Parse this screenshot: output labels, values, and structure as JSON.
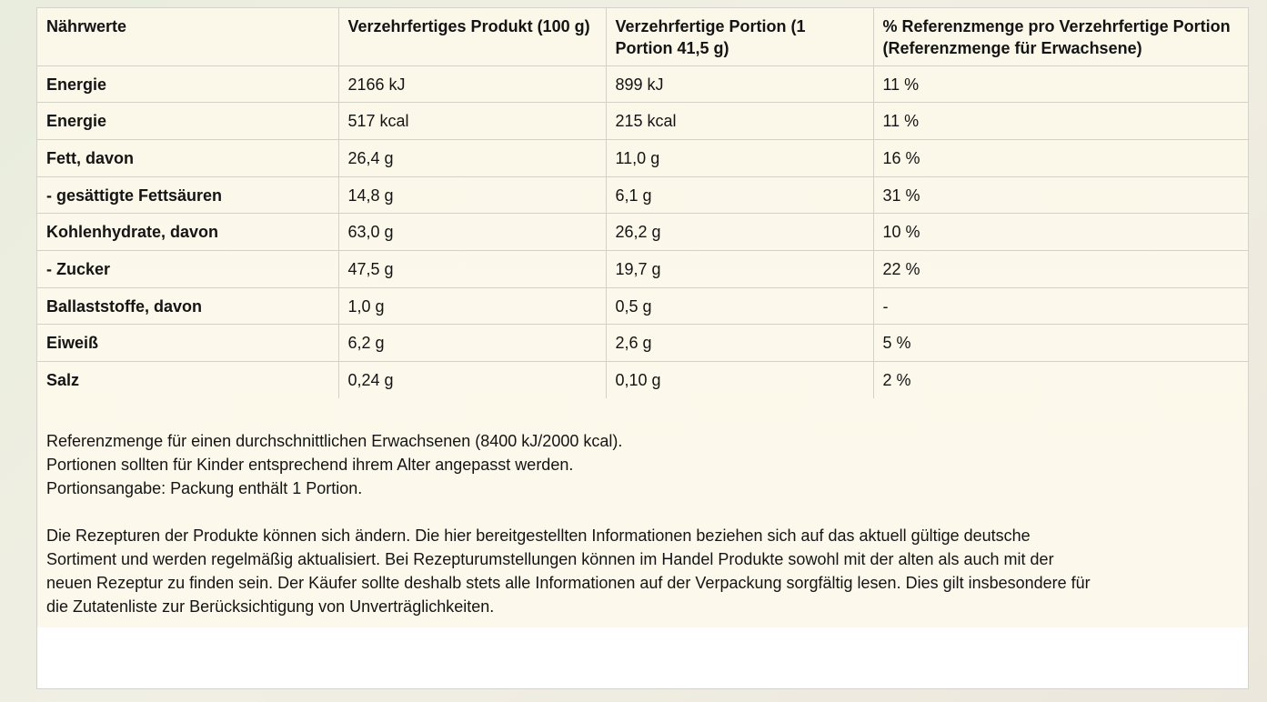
{
  "table": {
    "headers": [
      "Nährwerte",
      "Verzehrfertiges Produkt (100 g)",
      "Verzehrfertige Portion (1 Portion 41,5 g)",
      "% Referenzmenge pro Verzehrfertige Portion (Referenzmenge für Erwachsene)"
    ],
    "rows": [
      [
        "Energie",
        "2166 kJ",
        "899 kJ",
        "11 %"
      ],
      [
        "Energie",
        "517 kcal",
        "215 kcal",
        "11 %"
      ],
      [
        "Fett, davon",
        "26,4 g",
        "11,0 g",
        "16 %"
      ],
      [
        "- gesättigte Fettsäuren",
        "14,8 g",
        "6,1 g",
        "31 %"
      ],
      [
        "Kohlenhydrate, davon",
        "63,0 g",
        "26,2 g",
        "10 %"
      ],
      [
        "- Zucker",
        "47,5 g",
        "19,7 g",
        "22 %"
      ],
      [
        "Ballaststoffe, davon",
        "1,0 g",
        "0,5 g",
        "-"
      ],
      [
        "Eiweiß",
        "6,2 g",
        "2,6 g",
        "5 %"
      ],
      [
        "Salz",
        "0,24 g",
        "0,10 g",
        "2 %"
      ]
    ]
  },
  "notes": {
    "reference": [
      "Referenzmenge für einen durchschnittlichen Erwachsenen (8400 kJ/2000 kcal).",
      "Portionen sollten für Kinder entsprechend ihrem Alter angepasst werden.",
      "Portionsangabe: Packung enthält 1 Portion."
    ],
    "disclaimer": [
      "Die Rezepturen der Produkte können sich ändern. Die hier bereitgestellten Informationen beziehen sich auf das aktuell gültige deutsche",
      "Sortiment und werden regelmäßig aktualisiert. Bei Rezepturumstellungen können im Handel Produkte sowohl mit der alten als auch mit der",
      "neuen Rezeptur zu finden sein. Der Käufer sollte deshalb stets alle Informationen auf der Verpackung sorgfältig lesen. Dies gilt insbesondere für",
      "die Zutatenliste zur Berücksichtigung von Unverträglichkeiten."
    ]
  },
  "colors": {
    "background": "#fbf8ea",
    "border": "#d4d2c6",
    "text": "#141414"
  }
}
